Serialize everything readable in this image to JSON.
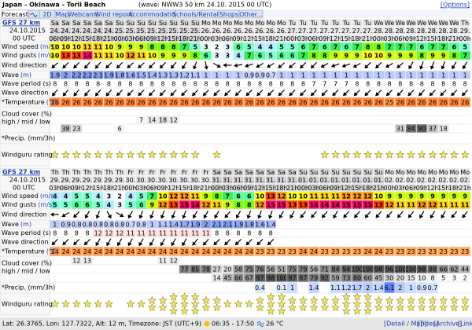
{
  "header": {
    "title": "Japan - Okinawa - Torii Beach",
    "subtitle": "(wave: NWW3 50 km 24.10. 2015 00 UTC)",
    "options": "[Options]"
  },
  "tabs": [
    "Forecast",
    "2D",
    "Map",
    "Webcams",
    "Wind reports",
    "Accommodation",
    "Schools/Rentals",
    "Shops",
    "Other..."
  ],
  "labels": {
    "wind_speed": {
      "text": "Wind speed",
      "unit": "(m/s)"
    },
    "wind_gusts": {
      "text": "Wind gusts",
      "unit": "(m/s)"
    },
    "wind_direction": {
      "text": "Wind direction"
    },
    "wave": {
      "text": "Wave",
      "unit": "(m)"
    },
    "wave_period": {
      "text": "Wave period (s)"
    },
    "wave_direction": {
      "text": "Wave direction"
    },
    "temperature": {
      "text": "*Temperature",
      "unit": "(°C)"
    },
    "cloud": {
      "text": "Cloud cover (%)",
      "sub": "high / mid / low"
    },
    "precip": {
      "text": "*Precip. (mm/3h)"
    },
    "rating": {
      "text": "Windguru rating"
    }
  },
  "forecasts": [
    {
      "model": "GFS 27 km",
      "date": "24.10.2015",
      "run": "00 UTC",
      "days": [
        "Sa",
        "Sa",
        "Sa",
        "Sa",
        "Sa",
        "Sa",
        "Su",
        "Su",
        "Su",
        "Su",
        "Su",
        "Su",
        "Su",
        "Su",
        "Mo",
        "Mo",
        "Mo",
        "Mo",
        "Mo",
        "Mo",
        "Mo",
        "Mo",
        "Tu",
        "Tu",
        "Tu",
        "Tu",
        "Tu",
        "Tu",
        "Tu",
        "Tu",
        "We",
        "We",
        "We",
        "We",
        "We",
        "We",
        "We",
        "We",
        "Th"
      ],
      "dates": [
        "24.",
        "24.",
        "24.",
        "24.",
        "24.",
        "24.",
        "25.",
        "25.",
        "25.",
        "25.",
        "25.",
        "25.",
        "25.",
        "25.",
        "26.",
        "26.",
        "26.",
        "26.",
        "26.",
        "26.",
        "26.",
        "26.",
        "27.",
        "27.",
        "27.",
        "27.",
        "27.",
        "27.",
        "27.",
        "27.",
        "28.",
        "28.",
        "28.",
        "28.",
        "28.",
        "28.",
        "28.",
        "28.",
        "29."
      ],
      "hours": [
        "06h",
        "09h",
        "12h",
        "15h",
        "18h",
        "21h",
        "00h",
        "03h",
        "06h",
        "09h",
        "12h",
        "15h",
        "18h",
        "21h",
        "00h",
        "03h",
        "06h",
        "09h",
        "12h",
        "15h",
        "18h",
        "21h",
        "00h",
        "03h",
        "06h",
        "09h",
        "12h",
        "15h",
        "18h",
        "21h",
        "00h",
        "03h",
        "06h",
        "09h",
        "12h",
        "15h",
        "18h",
        "21h",
        "00h"
      ],
      "wind_speed": [
        10,
        10,
        10,
        11,
        11,
        10,
        9,
        9,
        9,
        8,
        8,
        8,
        7,
        5,
        3,
        2,
        3,
        6,
        5,
        4,
        4,
        5,
        5,
        6,
        7,
        6,
        7,
        6,
        7,
        8,
        8,
        7,
        7,
        7,
        6,
        7,
        7,
        6,
        5
      ],
      "wind_gusts": [
        10,
        13,
        13,
        14,
        11,
        11,
        10,
        12,
        11,
        10,
        9,
        9,
        9,
        8,
        6,
        3,
        3,
        4,
        7,
        6,
        5,
        6,
        6,
        7,
        8,
        8,
        9,
        9,
        9,
        10,
        10,
        9,
        9,
        9,
        8,
        9,
        9,
        8,
        7
      ],
      "wind_direction": [
        50,
        45,
        45,
        40,
        40,
        45,
        45,
        50,
        50,
        45,
        45,
        40,
        30,
        20,
        350,
        300,
        90,
        80,
        70,
        60,
        60,
        50,
        50,
        45,
        45,
        60,
        70,
        70,
        60,
        45,
        45,
        60,
        50,
        30,
        20,
        20,
        20,
        30,
        30
      ],
      "wave": [
        1.9,
        2,
        2.2,
        2.2,
        2.1,
        1.9,
        1.8,
        1.6,
        1.5,
        1.4,
        1.3,
        1.3,
        1.2,
        1.1,
        1,
        1,
        1,
        1,
        0.9,
        0.9,
        0.7,
        1,
        1,
        1,
        1,
        1,
        1,
        1,
        1,
        1,
        1,
        1,
        1,
        1,
        1,
        1,
        1,
        1,
        1
      ],
      "wave_period": [
        8,
        8,
        8,
        8,
        8,
        8,
        8,
        8,
        8,
        8,
        8,
        8,
        8,
        8,
        8,
        8,
        8,
        8,
        8,
        8,
        8,
        8,
        8,
        8,
        7,
        7,
        7,
        7,
        8,
        8,
        8,
        8,
        8,
        8,
        8,
        8,
        8,
        8,
        8
      ],
      "wave_direction": [
        40,
        40,
        40,
        40,
        40,
        40,
        45,
        45,
        45,
        45,
        45,
        45,
        45,
        45,
        45,
        45,
        45,
        45,
        45,
        45,
        45,
        45,
        45,
        45,
        45,
        45,
        45,
        45,
        45,
        45,
        45,
        45,
        45,
        45,
        45,
        45,
        45,
        45,
        45
      ],
      "temperature": [
        26,
        26,
        26,
        26,
        26,
        26,
        26,
        26,
        26,
        26,
        26,
        26,
        26,
        26,
        26,
        26,
        26,
        26,
        26,
        26,
        26,
        26,
        26,
        26,
        26,
        26,
        26,
        26,
        26,
        26,
        26,
        25,
        26,
        26,
        26,
        26,
        26,
        26,
        26
      ],
      "cloud_high": [
        null,
        null,
        null,
        null,
        null,
        null,
        null,
        null,
        null,
        null,
        null,
        null,
        null,
        null,
        null,
        null,
        null,
        null,
        null,
        null,
        null,
        null,
        null,
        null,
        null,
        null,
        null,
        null,
        null,
        null,
        null,
        null,
        null,
        null,
        null,
        null,
        null,
        null,
        null
      ],
      "cloud_mid": [
        null,
        null,
        null,
        null,
        null,
        null,
        null,
        null,
        7,
        14,
        18,
        12,
        null,
        null,
        null,
        null,
        null,
        null,
        null,
        null,
        null,
        null,
        null,
        null,
        null,
        null,
        null,
        null,
        null,
        null,
        null,
        null,
        null,
        null,
        null,
        null,
        null,
        null,
        null
      ],
      "cloud_low": [
        null,
        38,
        23,
        null,
        null,
        null,
        6,
        null,
        null,
        null,
        null,
        null,
        null,
        null,
        null,
        null,
        null,
        null,
        null,
        null,
        null,
        null,
        null,
        null,
        null,
        null,
        null,
        null,
        null,
        null,
        null,
        null,
        31,
        84,
        90,
        37,
        18,
        null,
        null
      ],
      "precip": [
        null,
        null,
        null,
        null,
        null,
        null,
        null,
        null,
        null,
        null,
        null,
        null,
        null,
        null,
        null,
        null,
        null,
        null,
        null,
        null,
        null,
        null,
        null,
        null,
        null,
        null,
        null,
        null,
        null,
        null,
        null,
        null,
        null,
        null,
        null,
        null,
        null,
        null,
        null
      ],
      "rating": [
        1,
        1,
        1,
        1,
        1,
        1,
        1,
        1,
        1,
        1,
        1,
        1,
        1,
        1,
        0,
        1,
        0,
        0,
        0,
        0,
        0,
        0,
        0,
        0,
        0,
        1,
        1,
        1,
        1,
        1,
        1,
        1,
        1,
        1,
        1,
        1,
        1,
        1,
        1
      ]
    },
    {
      "model": "GFS 27 km",
      "date": "24.10.2015",
      "run": "00 UTC",
      "days": [
        "Th",
        "Th",
        "Th",
        "Th",
        "Th",
        "Th",
        "Th",
        "Fr",
        "Fr",
        "Fr",
        "Fr",
        "Fr",
        "Fr",
        "Fr",
        "Fr",
        "Sa",
        "Sa",
        "Sa",
        "Sa",
        "Sa",
        "Sa",
        "Sa",
        "Sa",
        "Su",
        "Su",
        "Su",
        "Su",
        "Su",
        "Su",
        "Su",
        "Su",
        "Mo",
        "Mo",
        "Mo",
        "Mo",
        "Mo",
        "Mo",
        "Mo",
        "Mo"
      ],
      "dates": [
        "29.",
        "29.",
        "29.",
        "29.",
        "29.",
        "29.",
        "29.",
        "30.",
        "30.",
        "30.",
        "30.",
        "30.",
        "30.",
        "30.",
        "30.",
        "31.",
        "31.",
        "31.",
        "31.",
        "31.",
        "31.",
        "31.",
        "31.",
        "01.",
        "01.",
        "01.",
        "01.",
        "01.",
        "01.",
        "01.",
        "01.",
        "02.",
        "02.",
        "02.",
        "02.",
        "02.",
        "02.",
        "02.",
        "02."
      ],
      "hours": [
        "03h",
        "06h",
        "09h",
        "12h",
        "15h",
        "18h",
        "21h",
        "00h",
        "03h",
        "06h",
        "09h",
        "12h",
        "15h",
        "18h",
        "21h",
        "00h",
        "03h",
        "06h",
        "09h",
        "12h",
        "15h",
        "18h",
        "21h",
        "00h",
        "03h",
        "06h",
        "09h",
        "12h",
        "15h",
        "18h",
        "21h",
        "00h",
        "03h",
        "06h",
        "09h",
        "12h",
        "15h",
        "18h",
        "21h"
      ],
      "wind_speed": [
        4,
        4,
        5,
        5,
        4,
        3,
        2,
        4,
        5,
        7,
        10,
        12,
        12,
        11,
        9,
        8,
        7,
        6,
        6,
        10,
        13,
        12,
        10,
        10,
        11,
        11,
        11,
        12,
        12,
        12,
        10,
        9,
        9,
        9,
        9,
        9,
        9,
        9,
        9
      ],
      "wind_gusts": [
        5,
        5,
        6,
        6,
        5,
        4,
        3,
        5,
        6,
        9,
        12,
        13,
        15,
        14,
        12,
        11,
        9,
        8,
        8,
        12,
        15,
        15,
        13,
        13,
        14,
        14,
        14,
        15,
        15,
        15,
        13,
        12,
        11,
        11,
        12,
        12,
        11,
        11,
        11
      ],
      "wind_direction": [
        90,
        60,
        45,
        30,
        20,
        330,
        300,
        30,
        20,
        20,
        20,
        20,
        20,
        30,
        30,
        30,
        40,
        30,
        20,
        20,
        20,
        30,
        30,
        40,
        40,
        40,
        30,
        40,
        40,
        40,
        40,
        40,
        40,
        40,
        30,
        30,
        30,
        40,
        40
      ],
      "wave": [
        1,
        0.9,
        0.8,
        0.8,
        0.8,
        0.8,
        0.8,
        0.7,
        0.8,
        1,
        1.1,
        1.4,
        1.7,
        1.9,
        2,
        2.1,
        2.1,
        1.9,
        1.8,
        1.6,
        1.4,
        null,
        null,
        null,
        null,
        null,
        null,
        null,
        null,
        null,
        null,
        null,
        null,
        null,
        null,
        null,
        null,
        null,
        null
      ],
      "wave_period": [
        8,
        8,
        8,
        8,
        12,
        12,
        12,
        11,
        11,
        11,
        11,
        11,
        11,
        11,
        11,
        8,
        8,
        8,
        8,
        8,
        8,
        null,
        null,
        null,
        null,
        null,
        null,
        null,
        null,
        null,
        null,
        null,
        null,
        null,
        null,
        null,
        null,
        null,
        null
      ],
      "wave_direction": [
        45,
        45,
        45,
        45,
        30,
        30,
        30,
        30,
        30,
        30,
        30,
        30,
        30,
        40,
        40,
        45,
        45,
        45,
        45,
        45,
        45,
        null,
        null,
        null,
        null,
        null,
        null,
        null,
        null,
        null,
        null,
        null,
        null,
        null,
        null,
        null,
        null,
        null,
        null
      ],
      "temperature": [
        24,
        24,
        24,
        24,
        24,
        24,
        24,
        24,
        24,
        24,
        24,
        24,
        24,
        24,
        24,
        24,
        24,
        24,
        24,
        23,
        23,
        23,
        23,
        24,
        24,
        23,
        23,
        23,
        23,
        24,
        24,
        23,
        23,
        23,
        23,
        23,
        23,
        23,
        23
      ],
      "cloud_high": [
        null,
        null,
        12,
        13,
        null,
        null,
        null,
        null,
        null,
        null,
        11,
        12,
        null,
        null,
        null,
        null,
        null,
        null,
        null,
        null,
        null,
        null,
        null,
        null,
        null,
        null,
        null,
        null,
        null,
        null,
        null,
        null,
        null,
        null,
        null,
        null,
        null,
        null,
        null
      ],
      "cloud_mid": [
        null,
        null,
        null,
        null,
        null,
        null,
        null,
        null,
        null,
        null,
        null,
        null,
        77,
        85,
        78,
        27,
        20,
        58,
        75,
        76,
        56,
        51,
        75,
        79,
        56,
        71,
        84,
        94,
        100,
        100,
        98,
        96,
        100,
        100,
        98,
        88,
        66,
        62,
        44
      ],
      "cloud_low": [
        null,
        null,
        null,
        null,
        null,
        null,
        null,
        null,
        null,
        null,
        null,
        null,
        null,
        null,
        null,
        14,
        45,
        66,
        67,
        97,
        98,
        100,
        97,
        87,
        79,
        92,
        59,
        73,
        80,
        60,
        45,
        30,
        20,
        15,
        10,
        8,
        5,
        3,
        2
      ],
      "precip": [
        null,
        null,
        null,
        null,
        null,
        null,
        null,
        null,
        null,
        null,
        null,
        null,
        null,
        null,
        null,
        null,
        null,
        null,
        null,
        0.4,
        null,
        0.1,
        1,
        null,
        1.4,
        null,
        1.1,
        1.2,
        1.7,
        2,
        1.4,
        6.1,
        2,
        1,
        0.9,
        0.7,
        null,
        null,
        null
      ],
      "rating": [
        1,
        1,
        1,
        1,
        1,
        1,
        0,
        1,
        1,
        2,
        2,
        3,
        3,
        3,
        2,
        2,
        1,
        1,
        1,
        2,
        3,
        3,
        2,
        2,
        2,
        2,
        2,
        3,
        3,
        3,
        2,
        2,
        2,
        2,
        2,
        2,
        2,
        2,
        2
      ]
    }
  ],
  "footer": {
    "location": "Lat: 26.3765, Lon: 127.7322, Alt: 12 m, Timezone: JST (UTC+9)",
    "sun": "06:35 - 17:50",
    "water": "26 °C",
    "links": [
      "[Detail / Map]",
      "[Tides]",
      "[Archive]",
      "[Link]"
    ]
  }
}
